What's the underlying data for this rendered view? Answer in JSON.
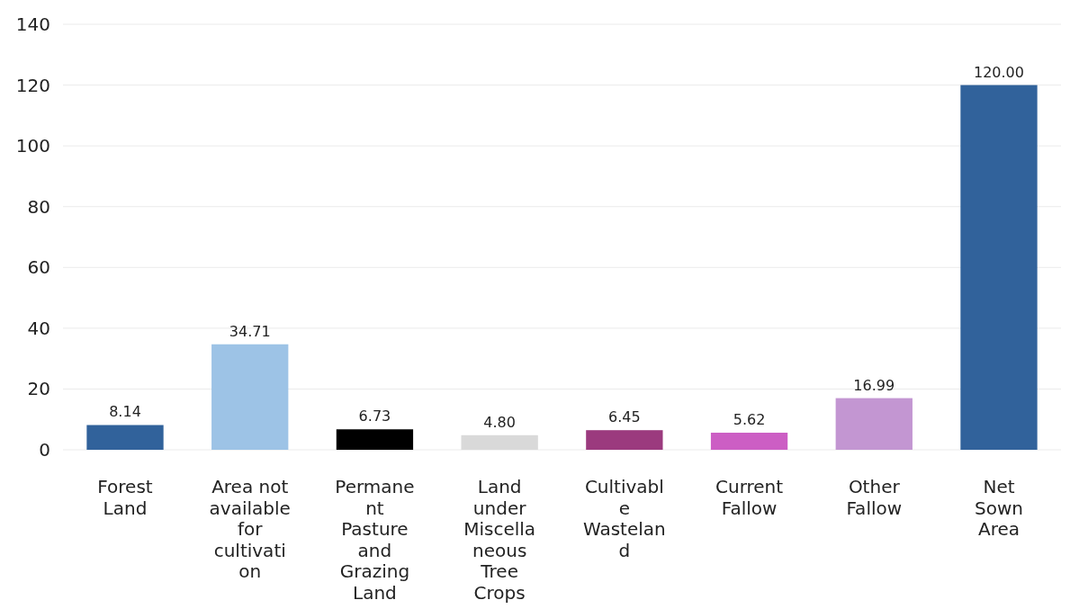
{
  "chart_data": {
    "type": "bar",
    "categories": [
      "Forest Land",
      "Area not available for cultivation",
      "Permanent Pasture and Grazing Land",
      "Land under Miscellaneous Tree Crops",
      "Cultivable Wasteland",
      "Current Fallow",
      "Other Fallow",
      "Net Sown Area"
    ],
    "values": [
      8.14,
      34.71,
      6.73,
      4.8,
      6.45,
      5.62,
      16.99,
      120
    ],
    "colors": [
      "#31629b",
      "#9dc3e6",
      "#000000",
      "#d9d9d9",
      "#9b3a7e",
      "#cc5ec4",
      "#c396d2",
      "#31629b"
    ],
    "value_labels": [
      "8.14",
      "34.71",
      "6.73",
      "4.80",
      "6.45",
      "5.62",
      "16.99",
      "120.00"
    ],
    "ylim": [
      0,
      140
    ],
    "yticks": [
      0,
      20,
      40,
      60,
      80,
      100,
      120,
      140
    ],
    "grid": "y"
  }
}
